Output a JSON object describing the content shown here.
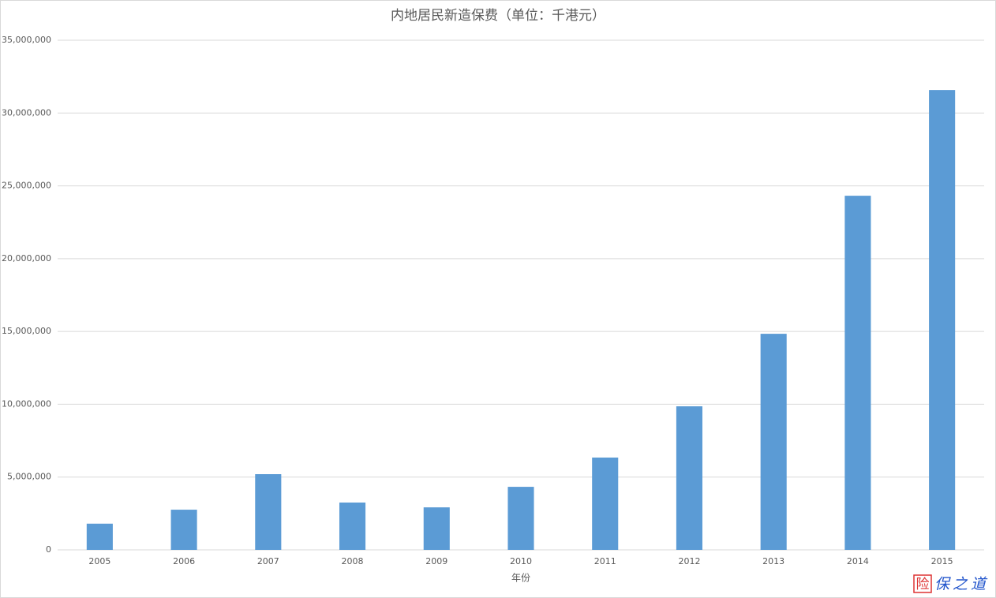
{
  "chart_data": {
    "type": "bar",
    "title": "内地居民新造保费（单位：千港元）",
    "x_label": "年份",
    "categories": [
      "2005",
      "2006",
      "2007",
      "2008",
      "2009",
      "2010",
      "2011",
      "2012",
      "2013",
      "2014",
      "2015"
    ],
    "values": [
      1800000,
      2760000,
      5200000,
      3250000,
      2920000,
      4330000,
      6340000,
      9860000,
      14840000,
      24320000,
      31580000
    ],
    "color": "#5b9bd5",
    "ylim": [
      0,
      35000000
    ],
    "yticks": [
      0,
      {
        "value": 5000000,
        "label": "5,000,000"
      },
      {
        "value": 10000000,
        "label": "10,000,000"
      },
      {
        "value": 15000000,
        "label": "15,000,000"
      },
      {
        "value": 20000000,
        "label": "20,000,000"
      },
      {
        "value": 25000000,
        "label": "25,000,000"
      },
      {
        "value": 30000000,
        "label": "30,000,000"
      },
      {
        "value": 35000000,
        "label": "35,000,000"
      }
    ],
    "grid": true,
    "watermark_box": "险",
    "watermark": "保之道"
  }
}
